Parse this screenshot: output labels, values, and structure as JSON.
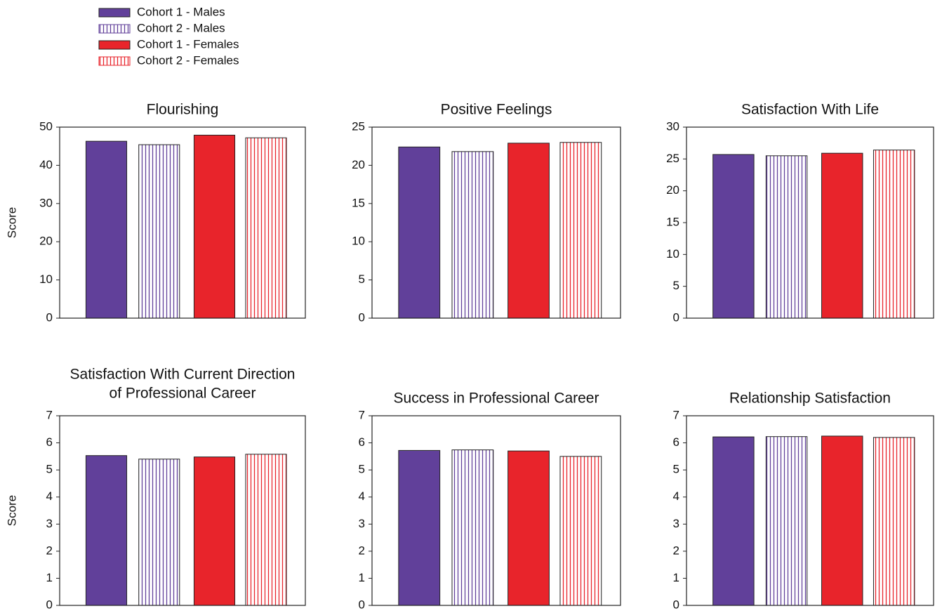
{
  "legend": [
    {
      "name": "Cohort 1 - Males",
      "color": "#61409a",
      "hatched": false
    },
    {
      "name": "Cohort 2 - Males",
      "color": "#61409a",
      "hatched": true
    },
    {
      "name": "Cohort 1 - Females",
      "color": "#e8242b",
      "hatched": false
    },
    {
      "name": "Cohort 2 - Females",
      "color": "#e8242b",
      "hatched": true
    }
  ],
  "chart_data": [
    {
      "type": "bar",
      "title": "Flourishing",
      "ylabel": "Score",
      "values": [
        46.3,
        45.4,
        47.9,
        47.2
      ],
      "ylim": [
        0,
        50
      ],
      "yticks": [
        0,
        10,
        20,
        30,
        40,
        50
      ]
    },
    {
      "type": "bar",
      "title": "Positive Feelings",
      "values": [
        22.4,
        21.8,
        22.9,
        23.0
      ],
      "ylim": [
        0,
        25
      ],
      "yticks": [
        0,
        5,
        10,
        15,
        20,
        25
      ]
    },
    {
      "type": "bar",
      "title": "Satisfaction With Life",
      "values": [
        25.7,
        25.5,
        25.9,
        26.4
      ],
      "ylim": [
        0,
        30
      ],
      "yticks": [
        0,
        5,
        10,
        15,
        20,
        25,
        30
      ]
    },
    {
      "type": "bar",
      "title": [
        "Satisfaction With Current Direction",
        "of Professional Career"
      ],
      "ylabel": "Score",
      "values": [
        5.53,
        5.4,
        5.48,
        5.58
      ],
      "ylim": [
        0,
        7
      ],
      "yticks": [
        0,
        1,
        2,
        3,
        4,
        5,
        6,
        7
      ]
    },
    {
      "type": "bar",
      "title": "Success in Professional Career",
      "values": [
        5.72,
        5.74,
        5.7,
        5.5
      ],
      "ylim": [
        0,
        7
      ],
      "yticks": [
        0,
        1,
        2,
        3,
        4,
        5,
        6,
        7
      ]
    },
    {
      "type": "bar",
      "title": "Relationship Satisfaction",
      "values": [
        6.22,
        6.23,
        6.25,
        6.2
      ],
      "ylim": [
        0,
        7
      ],
      "yticks": [
        0,
        1,
        2,
        3,
        4,
        5,
        6,
        7
      ]
    }
  ]
}
